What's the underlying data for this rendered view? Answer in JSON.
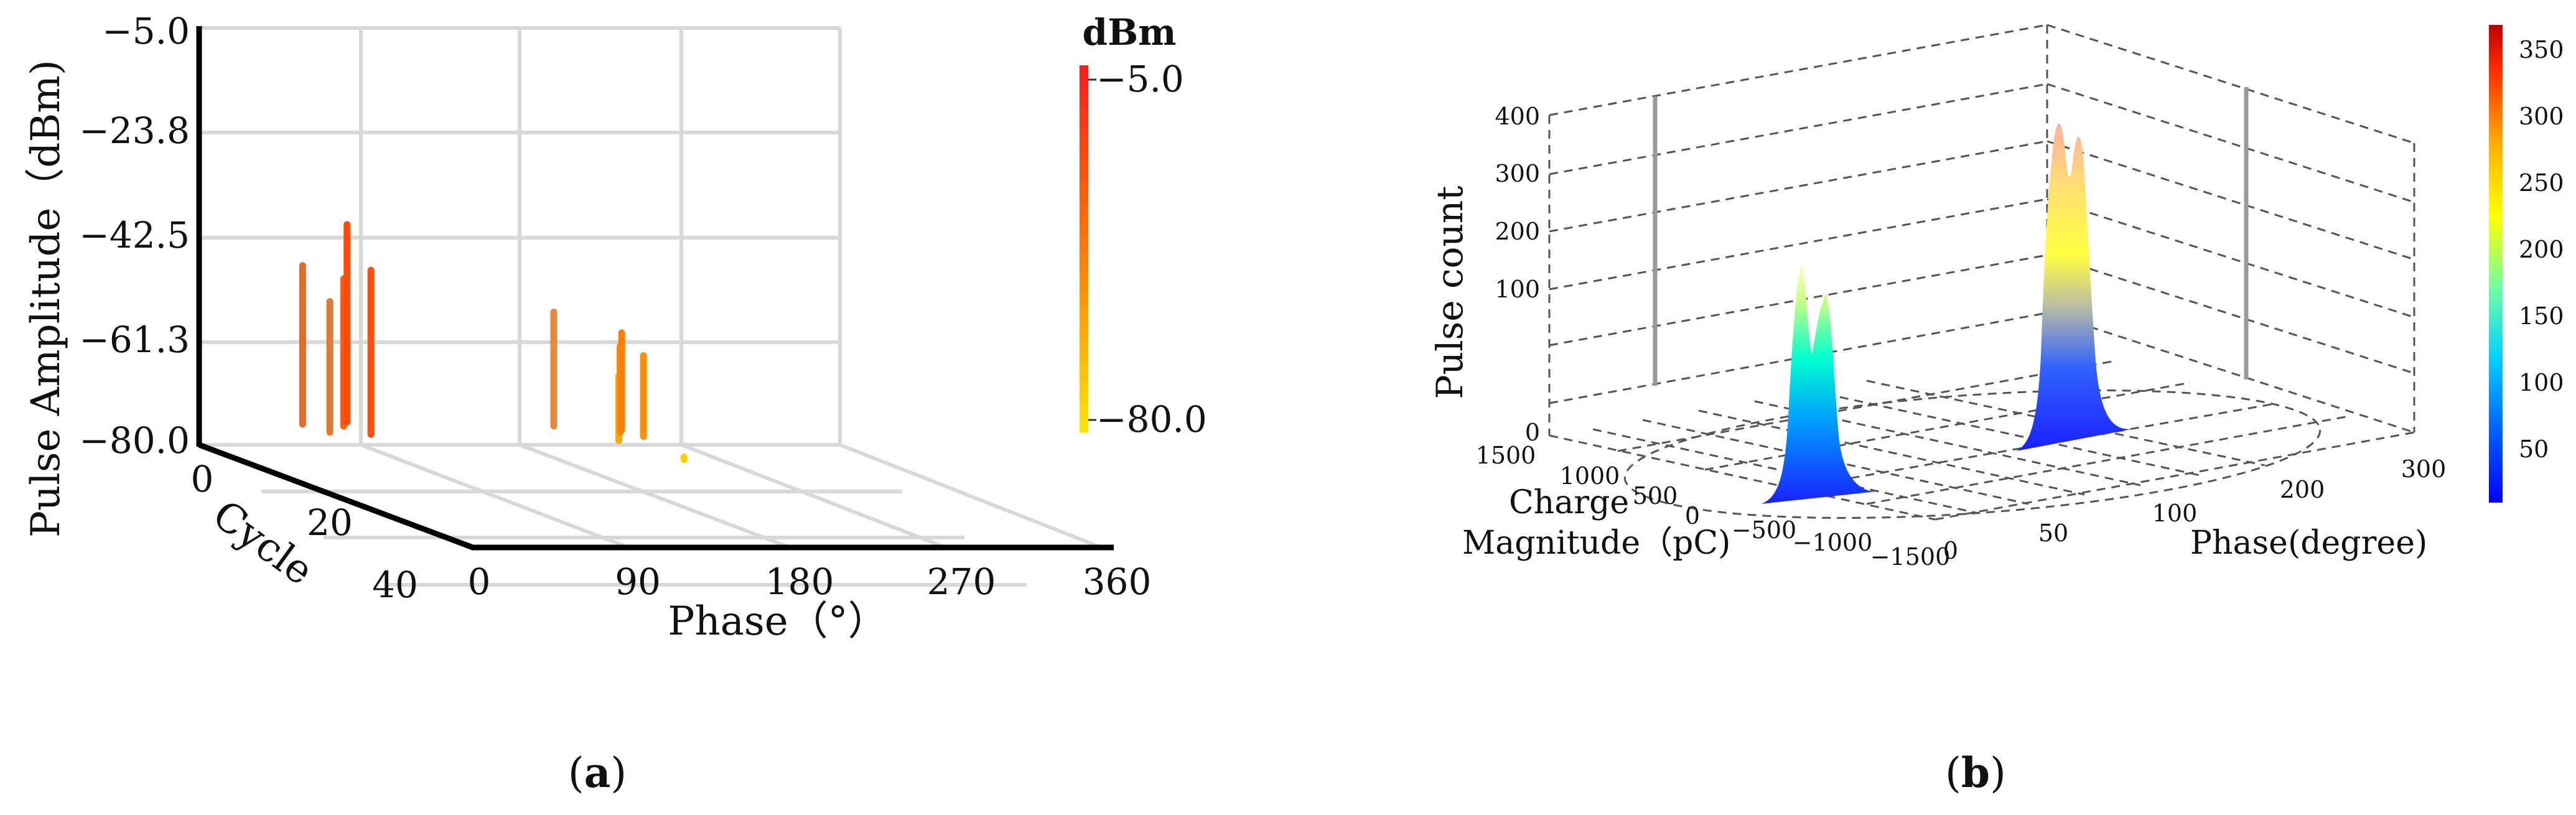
{
  "chart_data": [
    {
      "type": "scatter",
      "panel_label": "(a)",
      "xlabel": "Phase（°）",
      "ylabel": "Pulse Amplitude（dBm)",
      "zlabel": "Cycle",
      "x_ticks": [
        "0",
        "90",
        "180",
        "270",
        "360"
      ],
      "y_ticks": [
        "−5.0",
        "−23.8",
        "−42.5",
        "−61.3",
        "−80.0"
      ],
      "z_ticks": [
        "0",
        "20",
        "40"
      ],
      "xlim": [
        0,
        360
      ],
      "ylim": [
        -80,
        -5
      ],
      "colorbar": {
        "title": "dBm",
        "max_label": "−5.0",
        "min_label": "−80.0",
        "colors": [
          "#ff1a1a",
          "#ff7a00",
          "#ffe600"
        ]
      },
      "grid": true,
      "series": [
        {
          "points": [
            {
              "phase": 52,
              "cycle": 2,
              "amplitude": -47,
              "color": "#e66a2c"
            },
            {
              "phase": 55,
              "cycle": 6,
              "amplitude": -52,
              "color": "#e07a38"
            },
            {
              "phase": 72,
              "cycle": 3,
              "amplitude": -49,
              "color": "#ff5a10"
            },
            {
              "phase": 75,
              "cycle": 7,
              "amplitude": -46,
              "color": "#ff4d0a"
            },
            {
              "phase": 80,
              "cycle": 1,
              "amplitude": -40,
              "color": "#ff4a08"
            },
            {
              "phase": 190,
              "cycle": 3,
              "amplitude": -55,
              "color": "#e88a3c"
            },
            {
              "phase": 205,
              "cycle": 10,
              "amplitude": -64,
              "color": "#ffaa00"
            },
            {
              "phase": 218,
              "cycle": 6,
              "amplitude": -60,
              "color": "#ff8c00"
            },
            {
              "phase": 222,
              "cycle": 5,
              "amplitude": -58,
              "color": "#ff8000"
            },
            {
              "phase": 225,
              "cycle": 8,
              "amplitude": -61,
              "color": "#ff9000"
            },
            {
              "phase": 217,
              "cycle": 18,
              "amplitude": -76,
              "color": "#ffd000"
            }
          ]
        }
      ]
    },
    {
      "type": "surface",
      "panel_label": "(b)",
      "xlabel": "Phase(degree)",
      "ylabel": "Charge Magnitude（pC)",
      "zlabel": "Pulse count",
      "ylabel_lines": [
        "Charge",
        "Magnitude（pC)"
      ],
      "x_ticks": [
        "0",
        "50",
        "100",
        "200",
        "300"
      ],
      "y_ticks": [
        "1500",
        "1000",
        "500",
        "0",
        "−500",
        "−1000",
        "−1500"
      ],
      "z_ticks": [
        "0",
        "100",
        "200",
        "300",
        "400"
      ],
      "zlim": [
        0,
        400
      ],
      "colorbar": {
        "ticks": [
          "350",
          "300",
          "250",
          "200",
          "150",
          "100",
          "50"
        ],
        "colors": [
          "#0000ff",
          "#00b4ff",
          "#00ffd0",
          "#a0ff60",
          "#ffff00",
          "#ffb000",
          "#ff4000",
          "#c00000"
        ]
      },
      "grid": true,
      "peaks": [
        {
          "phase": 45,
          "charge": 600,
          "count": 165
        },
        {
          "phase": 55,
          "charge": 550,
          "count": 150
        },
        {
          "phase": 225,
          "charge": -500,
          "count": 305
        },
        {
          "phase": 235,
          "charge": -550,
          "count": 300
        }
      ]
    }
  ]
}
